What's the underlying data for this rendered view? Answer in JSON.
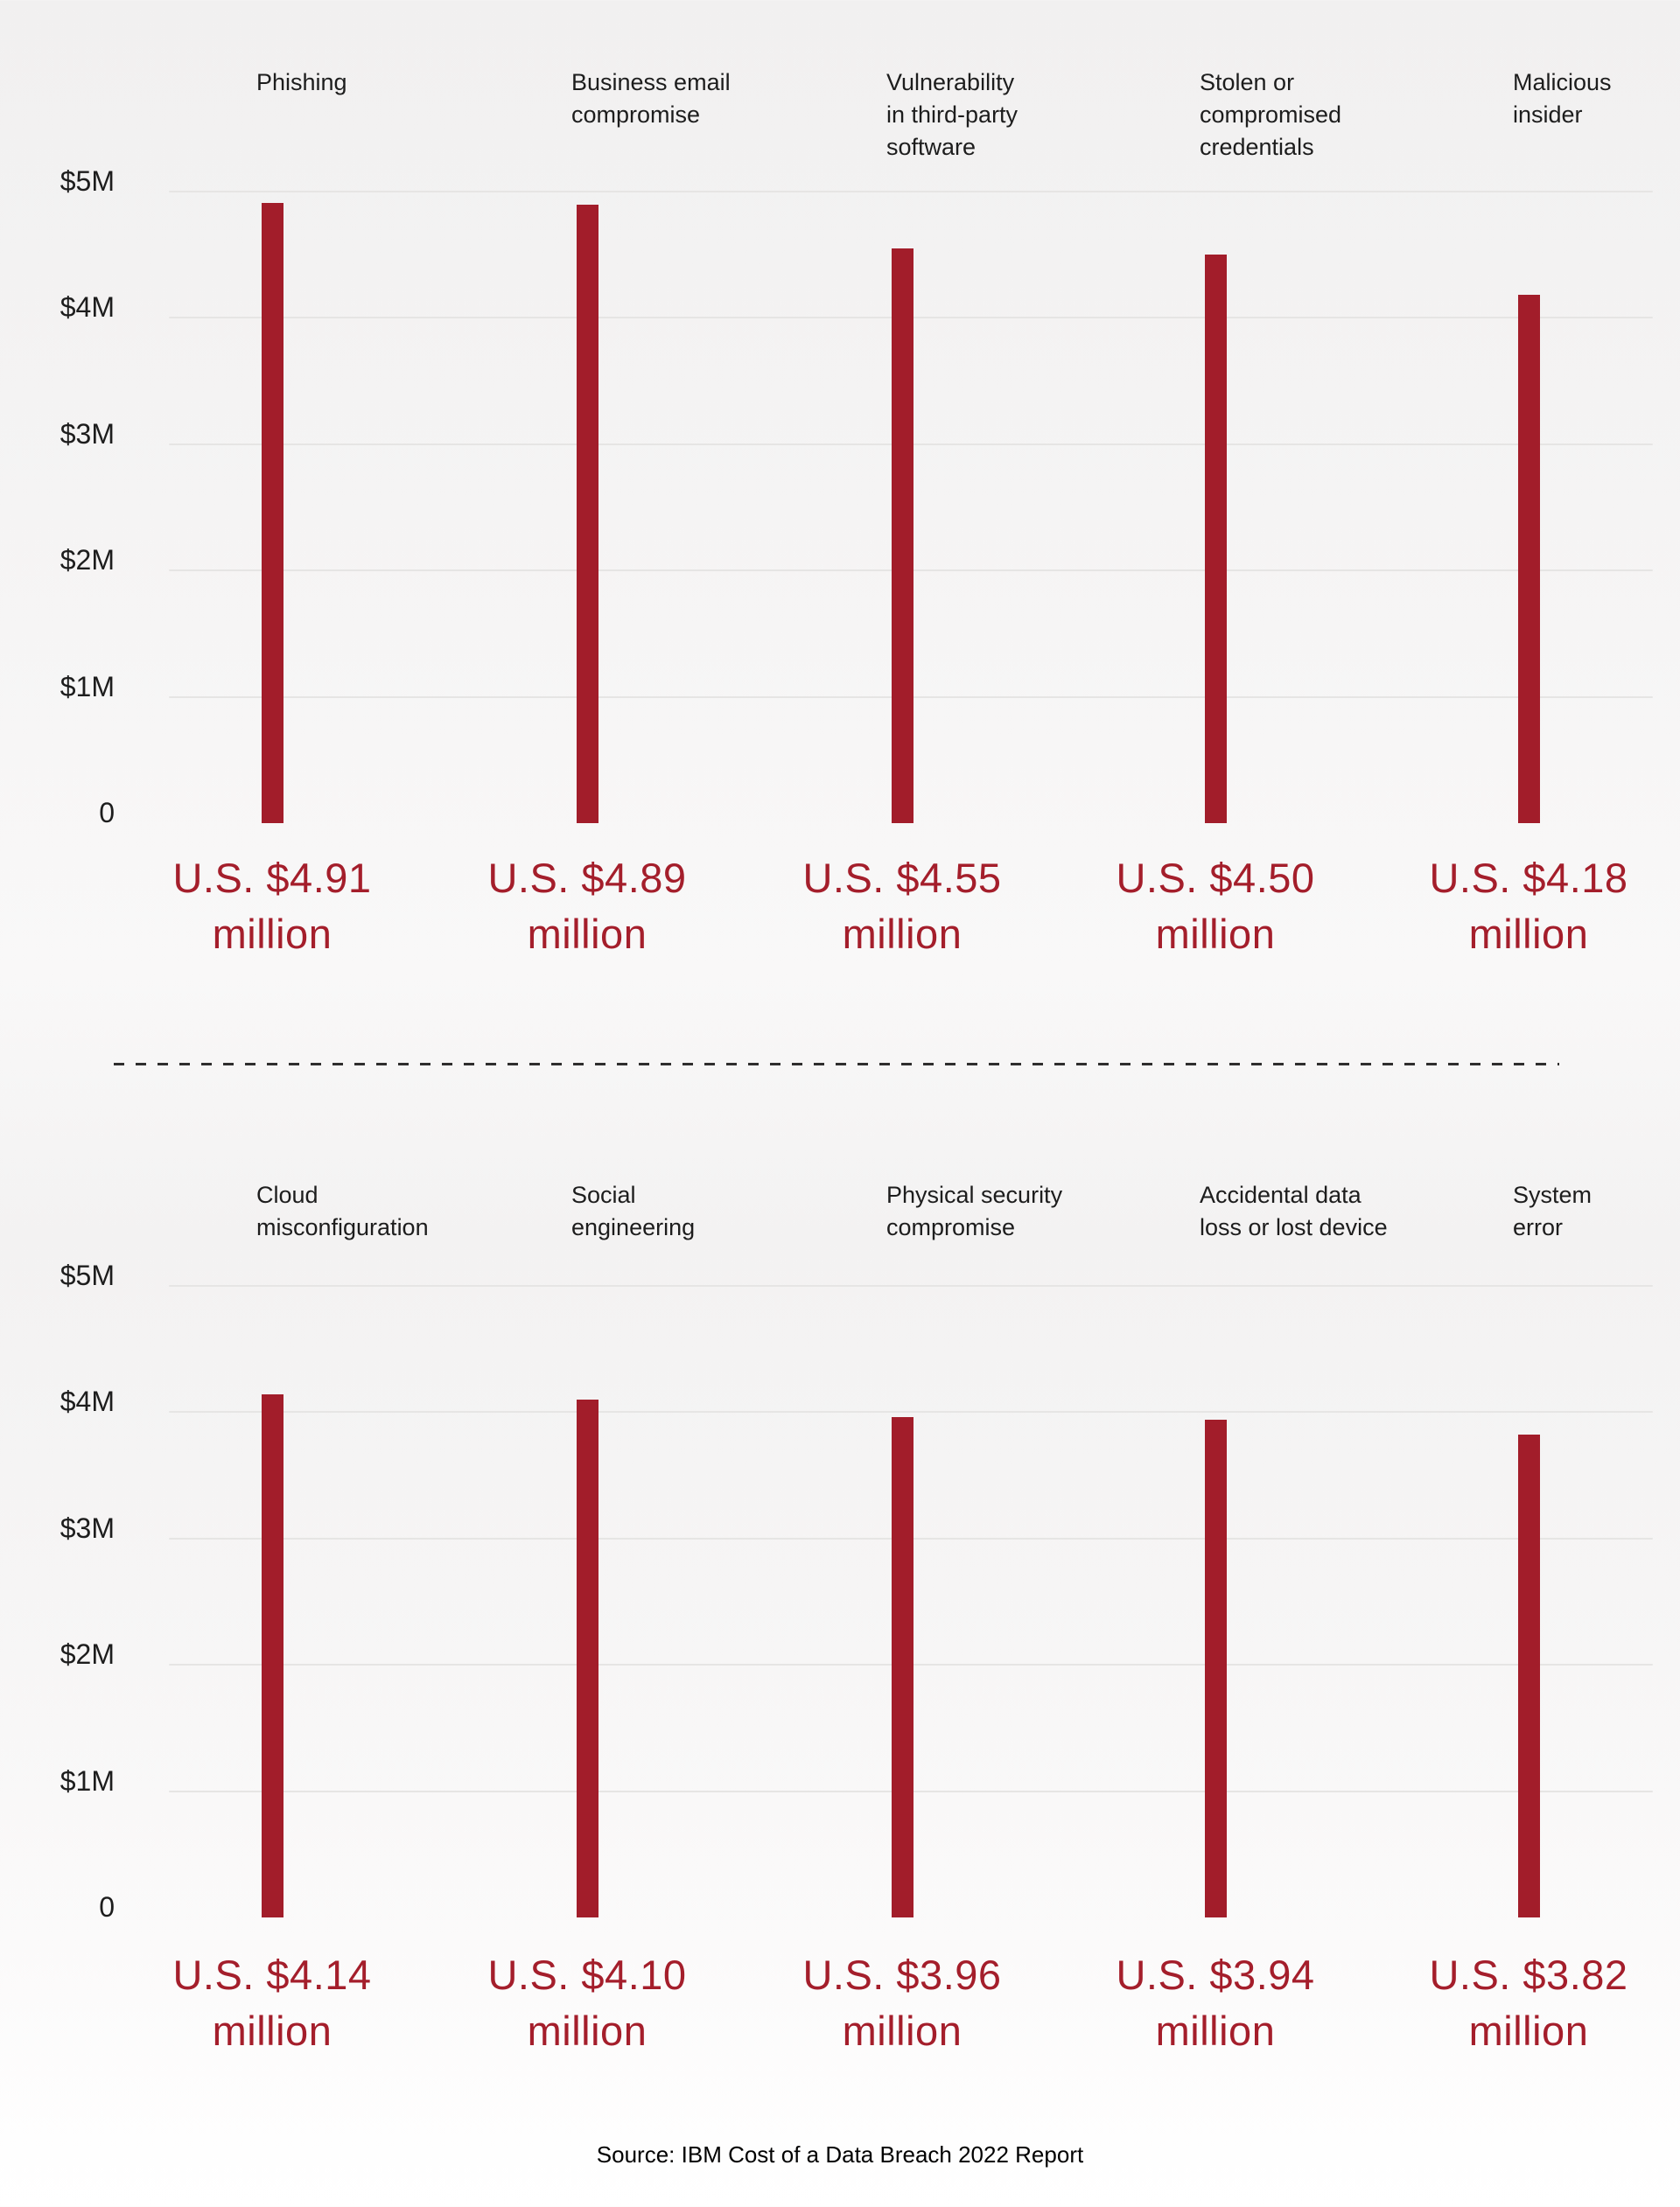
{
  "source_note": "Source: IBM Cost of a Data Breach 2022 Report",
  "colors": {
    "bar": "#a21d2a",
    "value_text": "#a41e2b",
    "label_text": "#1d1d1d",
    "gridline": "#e6e5e4",
    "divider": "#2f2e2e"
  },
  "chart_data": [
    {
      "type": "bar",
      "title": "",
      "position": "top",
      "categories": [
        "Phishing",
        "Business email\ncompromise",
        "Vulnerability\nin third-party\nsoftware",
        "Stolen or\ncompromised\ncredentials",
        "Malicious\ninsider"
      ],
      "values": [
        4.91,
        4.89,
        4.55,
        4.5,
        4.18
      ],
      "value_labels": [
        [
          "U.S. $4.91",
          "million"
        ],
        [
          "U.S. $4.89",
          "million"
        ],
        [
          "U.S. $4.55",
          "million"
        ],
        [
          "U.S. $4.50",
          "million"
        ],
        [
          "U.S. $4.18",
          "million"
        ]
      ],
      "xlabel": "",
      "ylabel": "",
      "unit": "USD millions",
      "ylim": [
        0,
        5
      ],
      "y_ticks": [
        {
          "label": "$5M",
          "value": 5
        },
        {
          "label": "$4M",
          "value": 4
        },
        {
          "label": "$3M",
          "value": 3
        },
        {
          "label": "$2M",
          "value": 2
        },
        {
          "label": "$1M",
          "value": 1
        },
        {
          "label": "0",
          "value": 0
        }
      ],
      "grid": true,
      "legend": null
    },
    {
      "type": "bar",
      "title": "",
      "position": "bottom",
      "categories": [
        "Cloud\nmisconfiguration",
        "Social\nengineering",
        "Physical security\ncompromise",
        "Accidental data\nloss or lost device",
        "System\nerror"
      ],
      "values": [
        4.14,
        4.1,
        3.96,
        3.94,
        3.82
      ],
      "value_labels": [
        [
          "U.S. $4.14",
          "million"
        ],
        [
          "U.S. $4.10",
          "million"
        ],
        [
          "U.S. $3.96",
          "million"
        ],
        [
          "U.S. $3.94",
          "million"
        ],
        [
          "U.S. $3.82",
          "million"
        ]
      ],
      "xlabel": "",
      "ylabel": "",
      "unit": "USD millions",
      "ylim": [
        0,
        5
      ],
      "y_ticks": [
        {
          "label": "$5M",
          "value": 5
        },
        {
          "label": "$4M",
          "value": 4
        },
        {
          "label": "$3M",
          "value": 3
        },
        {
          "label": "$2M",
          "value": 2
        },
        {
          "label": "$1M",
          "value": 1
        },
        {
          "label": "0",
          "value": 0
        }
      ],
      "grid": true,
      "legend": null
    }
  ]
}
